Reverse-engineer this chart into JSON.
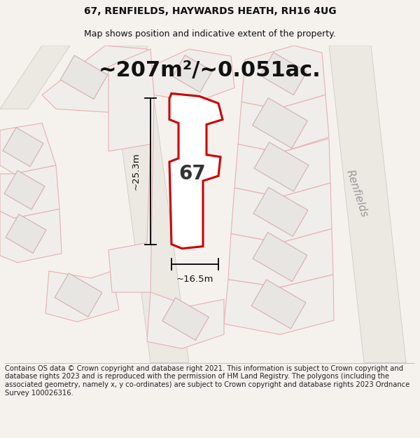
{
  "title": "67, RENFIELDS, HAYWARDS HEATH, RH16 4UG",
  "subtitle": "Map shows position and indicative extent of the property.",
  "area_text": "~207m²/~0.051ac.",
  "width_text": "~16.5m",
  "height_text": "~25.3m",
  "label_67": "67",
  "footer": "Contains OS data © Crown copyright and database right 2021. This information is subject to Crown copyright and database rights 2023 and is reproduced with the permission of HM Land Registry. The polygons (including the associated geometry, namely x, y co-ordinates) are subject to Crown copyright and database rights 2023 Ordnance Survey 100026316.",
  "bg_color": "#f5f2ee",
  "map_bg": "#f8f6f2",
  "highlight_color": "#cc0000",
  "highlight_fill": "#ffffff",
  "parcel_edge_color": "#e8b0b0",
  "parcel_fill": "#f0eeea",
  "building_fill": "#e8e6e2",
  "building_edge": "#d0b0b0",
  "road_color": "#d8d4ce",
  "title_fontsize": 10,
  "subtitle_fontsize": 9,
  "area_fontsize": 22,
  "label_fontsize": 20,
  "footer_fontsize": 7.2,
  "street_label": "Renfields",
  "street_label_color": "#999999",
  "street_label_fontsize": 11
}
